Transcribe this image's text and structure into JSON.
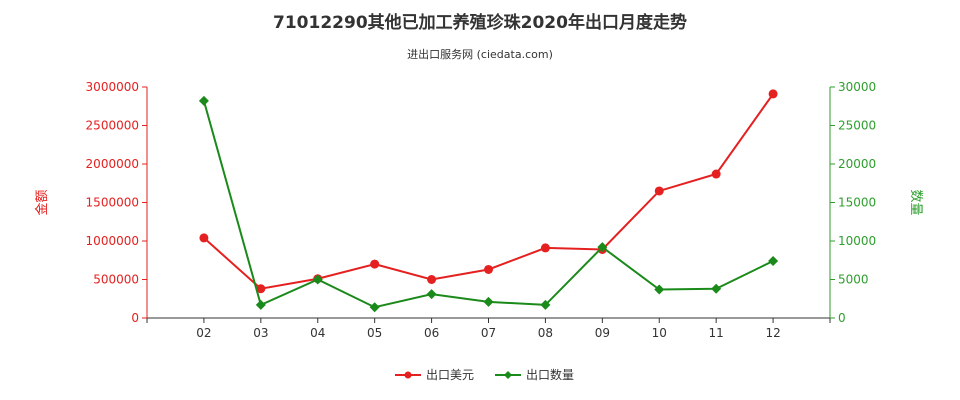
{
  "chart_data": {
    "type": "line",
    "title": "71012290其他已加工养殖珍珠2020年出口月度走势",
    "subtitle": "进出口服务网 (ciedata.com)",
    "categories": [
      "02",
      "03",
      "04",
      "05",
      "06",
      "07",
      "08",
      "09",
      "10",
      "11",
      "12"
    ],
    "y_left": {
      "label": "金额",
      "ylim": [
        0,
        3000000
      ],
      "ticks": [
        "0",
        "500000",
        "1000000",
        "1500000",
        "2000000",
        "2500000",
        "3000000"
      ],
      "color": "#e52020"
    },
    "y_right": {
      "label": "数量",
      "ylim": [
        0,
        30000
      ],
      "ticks": [
        "0",
        "5000",
        "10000",
        "15000",
        "20000",
        "25000",
        "30000"
      ],
      "color": "#2e9e2e"
    },
    "series": [
      {
        "name": "出口美元",
        "axis": "left",
        "color": "#e52020",
        "values": [
          1040000,
          380000,
          510000,
          700000,
          500000,
          630000,
          910000,
          890000,
          1650000,
          1870000,
          2910000
        ]
      },
      {
        "name": "出口数量",
        "axis": "right",
        "color": "#1a8a1a",
        "values": [
          28200,
          1700,
          5000,
          1400,
          3100,
          2100,
          1700,
          9200,
          3700,
          3800,
          7400
        ]
      }
    ],
    "grid": false,
    "legend": "bottom-center"
  }
}
